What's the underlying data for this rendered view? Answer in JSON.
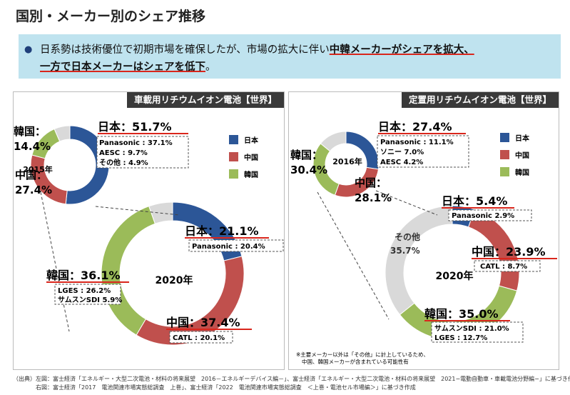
{
  "title": "国別・メーカー別のシェア推移",
  "summary": {
    "bullet": "●",
    "line1_prefix": "日系勢は技術優位で初期市場を確保したが、市場の拡大に伴い",
    "line1_highlight": "中韓メーカーがシェアを拡大、",
    "line2_highlight": "一方で日本メーカーはシェアを低下",
    "line2_suffix": "。"
  },
  "legend": [
    {
      "label": "日本",
      "color": "#2c5697"
    },
    {
      "label": "中国",
      "color": "#c0504d"
    },
    {
      "label": "韓国",
      "color": "#9bbb59"
    }
  ],
  "colors": {
    "japan": "#2c5697",
    "china": "#c0504d",
    "korea": "#9bbb59",
    "other": "#d9d9d9"
  },
  "left_panel": {
    "title": "車載用リチウムイオン電池【世界】"
  },
  "right_panel": {
    "title": "定置用リチウムイオン電池【世界】"
  },
  "chart_data": [
    {
      "type": "pie",
      "panel": "車載用リチウムイオン電池【世界】",
      "center_label": "2015年",
      "slices": [
        {
          "label": "日本",
          "value": 51.7
        },
        {
          "label": "中国",
          "value": 27.4
        },
        {
          "label": "韓国",
          "value": 14.4
        },
        {
          "label": "その他",
          "value": 6.5
        }
      ],
      "callouts": {
        "japan": "日本：51.7%",
        "japan_breakdown": [
          "Panasonic : 37.1%",
          "AESC : 9.7%",
          "その他 : 4.9%"
        ],
        "china_label": "中国：",
        "china_value": "27.4%",
        "korea_label": "韓国：",
        "korea_value": "14.4%"
      }
    },
    {
      "type": "pie",
      "panel": "車載用リチウムイオン電池【世界】",
      "center_label": "2020年",
      "slices": [
        {
          "label": "日本",
          "value": 21.1
        },
        {
          "label": "中国",
          "value": 37.4
        },
        {
          "label": "韓国",
          "value": 36.1
        },
        {
          "label": "その他",
          "value": 5.4
        }
      ],
      "callouts": {
        "japan": "日本：21.1%",
        "japan_breakdown": [
          "Panasonic : 20.4%"
        ],
        "china": "中国：37.4%",
        "china_breakdown": [
          "CATL : 20.1%"
        ],
        "korea": "韓国：36.1%",
        "korea_breakdown": [
          "LGES : 26.2%",
          "サムスンSDI 5.9%"
        ]
      }
    },
    {
      "type": "pie",
      "panel": "定置用リチウムイオン電池【世界】",
      "center_label": "2016年",
      "slices": [
        {
          "label": "日本",
          "value": 27.4
        },
        {
          "label": "中国",
          "value": 28.1
        },
        {
          "label": "韓国",
          "value": 30.4
        },
        {
          "label": "その他",
          "value": 14.1
        }
      ],
      "callouts": {
        "japan": "日本：27.4%",
        "japan_breakdown": [
          "Panasonic : 11.1%",
          "ソニー 7.0%",
          "AESC 4.2%"
        ],
        "china_label": "中国：",
        "china_value": "28.1%",
        "korea_label": "韓国：",
        "korea_value": "30.4%"
      }
    },
    {
      "type": "pie",
      "panel": "定置用リチウムイオン電池【世界】",
      "center_label": "2020年",
      "slices": [
        {
          "label": "日本",
          "value": 5.4
        },
        {
          "label": "中国",
          "value": 23.9
        },
        {
          "label": "韓国",
          "value": 35.0
        },
        {
          "label": "その他",
          "value": 35.7
        }
      ],
      "callouts": {
        "japan": "日本：5.4%",
        "japan_breakdown": [
          "Panasonic 2.9%"
        ],
        "china": "中国：23.9%",
        "china_breakdown": [
          "CATL : 8.7%"
        ],
        "korea": "韓国：35.0%",
        "korea_breakdown": [
          "サムスンSDI : 21.0%",
          "LGES : 12.7%"
        ],
        "other_label": "その他",
        "other_value": "35.7%"
      }
    }
  ],
  "right_note": [
    "※主要メーカー以外は「その他」に計上しているため、",
    "中国、韓国メーカーが含まれている可能性有"
  ],
  "footnote": [
    "（出典）左図：富士経済「エネルギー・大型二次電池・材料の将来展望　2016－エネルギーデバイス編－」、富士経済「エネルギー・大型二次電池・材料の将来展望　2021−電動自動車・車載電池分野編−」に基づき作成",
    "　　　　右図：富士経済「2017　電池関連市場実態総調査　上巻」、富士経済「2022　電池関連市場実態総調査　＜上巻・電池セル市場編＞」に基づき作成"
  ]
}
